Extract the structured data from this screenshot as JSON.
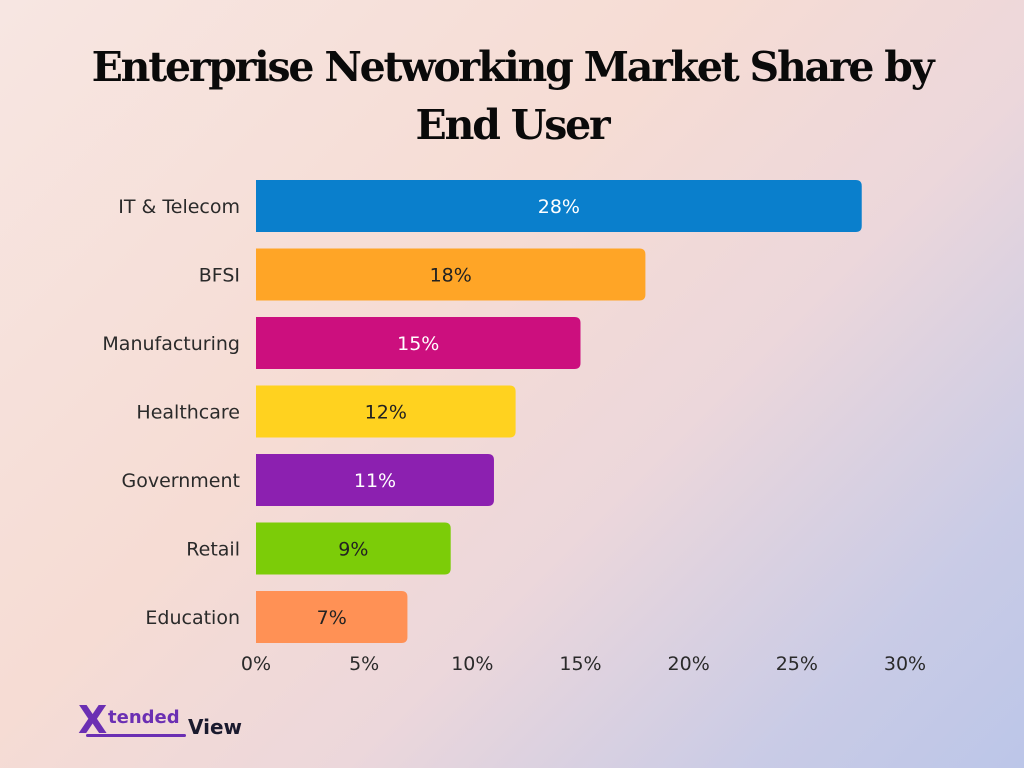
{
  "chart_data": {
    "type": "bar",
    "orientation": "horizontal",
    "title": "Enterprise Networking Market Share by End User",
    "categories": [
      "IT & Telecom",
      "BFSI",
      "Manufacturing",
      "Healthcare",
      "Government",
      "Retail",
      "Education"
    ],
    "values": [
      28,
      18,
      15,
      12,
      11,
      9,
      7
    ],
    "data_labels": [
      "28%",
      "18%",
      "15%",
      "12%",
      "11%",
      "9%",
      "7%"
    ],
    "colors": [
      "#0a7fcc",
      "#ffa526",
      "#cc0f7e",
      "#ffd21f",
      "#8c20b0",
      "#7ccc08",
      "#ff9155"
    ],
    "label_colors": [
      "#ffffff",
      "#222222",
      "#ffffff",
      "#222222",
      "#ffffff",
      "#222222",
      "#222222"
    ],
    "xlim": [
      0,
      30
    ],
    "xticks": [
      0,
      5,
      10,
      15,
      20,
      25,
      30
    ],
    "xtick_labels": [
      "0%",
      "5%",
      "10%",
      "15%",
      "20%",
      "25%",
      "30%"
    ],
    "grid": false,
    "xlabel": "",
    "ylabel": ""
  },
  "logo": {
    "mark": "X",
    "word1": "tended",
    "word2": "View"
  }
}
